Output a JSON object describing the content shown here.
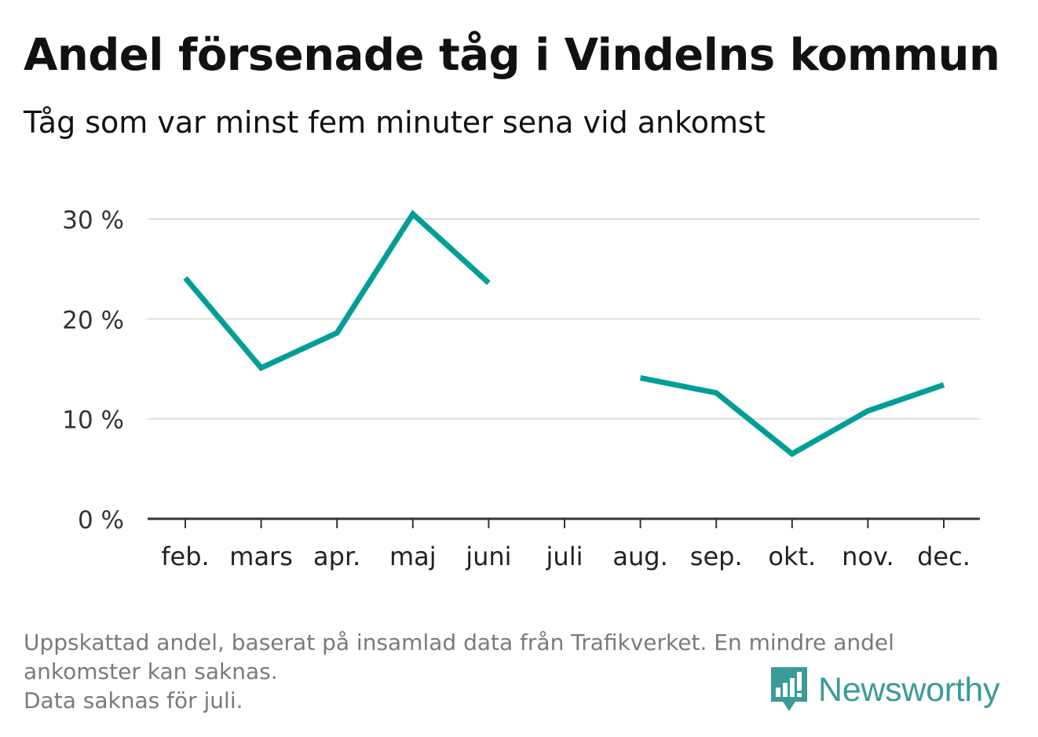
{
  "title": "Andel försenade tåg i Vindelns kommun",
  "subtitle": "Tåg som var minst fem minuter sena vid ankomst",
  "chart_data": {
    "type": "line",
    "categories": [
      "feb.",
      "mars",
      "apr.",
      "maj",
      "juni",
      "juli",
      "aug.",
      "sep.",
      "okt.",
      "nov.",
      "dec."
    ],
    "series": [
      {
        "values": [
          24.1,
          15.1,
          18.6,
          30.5,
          23.6,
          null,
          14.1,
          12.6,
          6.5,
          10.8,
          13.4
        ]
      }
    ],
    "ylim": [
      0,
      30
    ],
    "yticks": [
      0,
      10,
      20,
      30
    ],
    "ytick_labels": [
      "0 %",
      "10 %",
      "20 %",
      "30 %"
    ],
    "grid": true,
    "line_color": "#009e96"
  },
  "footnote": {
    "line1": "Uppskattad andel, baserat på insamlad data från Trafikverket. En mindre andel",
    "line2": "ankomster kan saknas.",
    "line3": "Data saknas för juli."
  },
  "logo": {
    "text": "Newsworthy",
    "icon": "bar-chart-speech-bubble-icon",
    "color": "#3a9b98"
  }
}
